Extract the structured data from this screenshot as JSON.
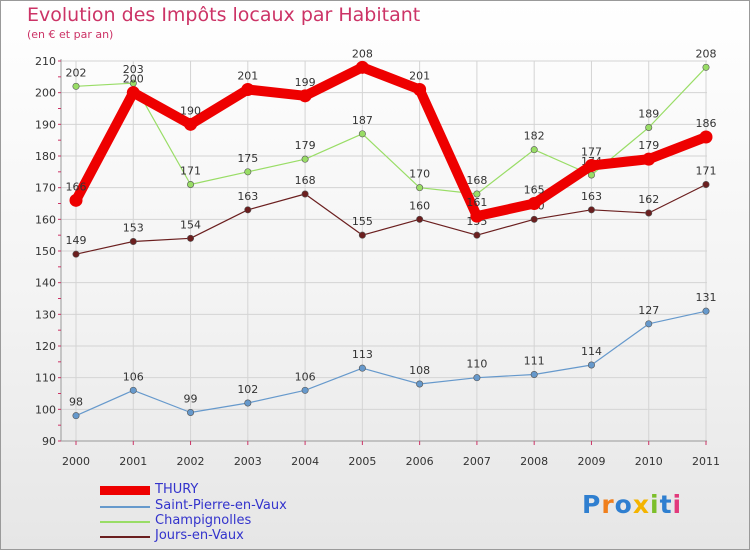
{
  "chart_data": {
    "type": "line",
    "title": "Evolution des Impôts locaux par Habitant",
    "subtitle": "(en € et par an)",
    "xlabel": "",
    "ylabel": "",
    "categories": [
      "2000",
      "2001",
      "2002",
      "2003",
      "2004",
      "2005",
      "2006",
      "2007",
      "2008",
      "2009",
      "2010",
      "2011"
    ],
    "ylim": [
      90,
      210
    ],
    "yticks": [
      90,
      100,
      110,
      120,
      130,
      140,
      150,
      160,
      170,
      180,
      190,
      200,
      210
    ],
    "grid": true,
    "legend_position": "bottom-left",
    "series": [
      {
        "name": "Saint-Pierre-en-Vaux",
        "color": "#6699cc",
        "values": [
          98,
          106,
          99,
          102,
          106,
          113,
          108,
          110,
          111,
          114,
          127,
          131
        ]
      },
      {
        "name": "Champignolles",
        "color": "#99dd66",
        "values": [
          202,
          203,
          171,
          175,
          179,
          187,
          170,
          168,
          182,
          174,
          189,
          208
        ]
      },
      {
        "name": "Jours-en-Vaux",
        "color": "#6b1f1f",
        "values": [
          149,
          153,
          154,
          163,
          168,
          155,
          160,
          155,
          160,
          163,
          162,
          171
        ]
      },
      {
        "name": "THURY",
        "color": "#ee0000",
        "values": [
          166,
          200,
          190,
          201,
          199,
          208,
          201,
          161,
          165,
          177,
          179,
          186
        ]
      }
    ]
  },
  "legend": {
    "items": [
      {
        "label": "THURY",
        "color": "#ee0000"
      },
      {
        "label": "Saint-Pierre-en-Vaux",
        "color": "#6699cc"
      },
      {
        "label": "Champignolles",
        "color": "#99dd66"
      },
      {
        "label": "Jours-en-Vaux",
        "color": "#6b1f1f"
      }
    ]
  },
  "logo": {
    "text": "Proxiti",
    "letters": [
      {
        "char": "P",
        "color": "#2f7fd0"
      },
      {
        "char": "r",
        "color": "#f07f1c"
      },
      {
        "char": "o",
        "color": "#2f7fd0"
      },
      {
        "char": "x",
        "color": "#f4b400"
      },
      {
        "char": "i",
        "color": "#7cbf2a"
      },
      {
        "char": "t",
        "color": "#2f7fd0"
      },
      {
        "char": "i",
        "color": "#e23a7c"
      }
    ]
  }
}
